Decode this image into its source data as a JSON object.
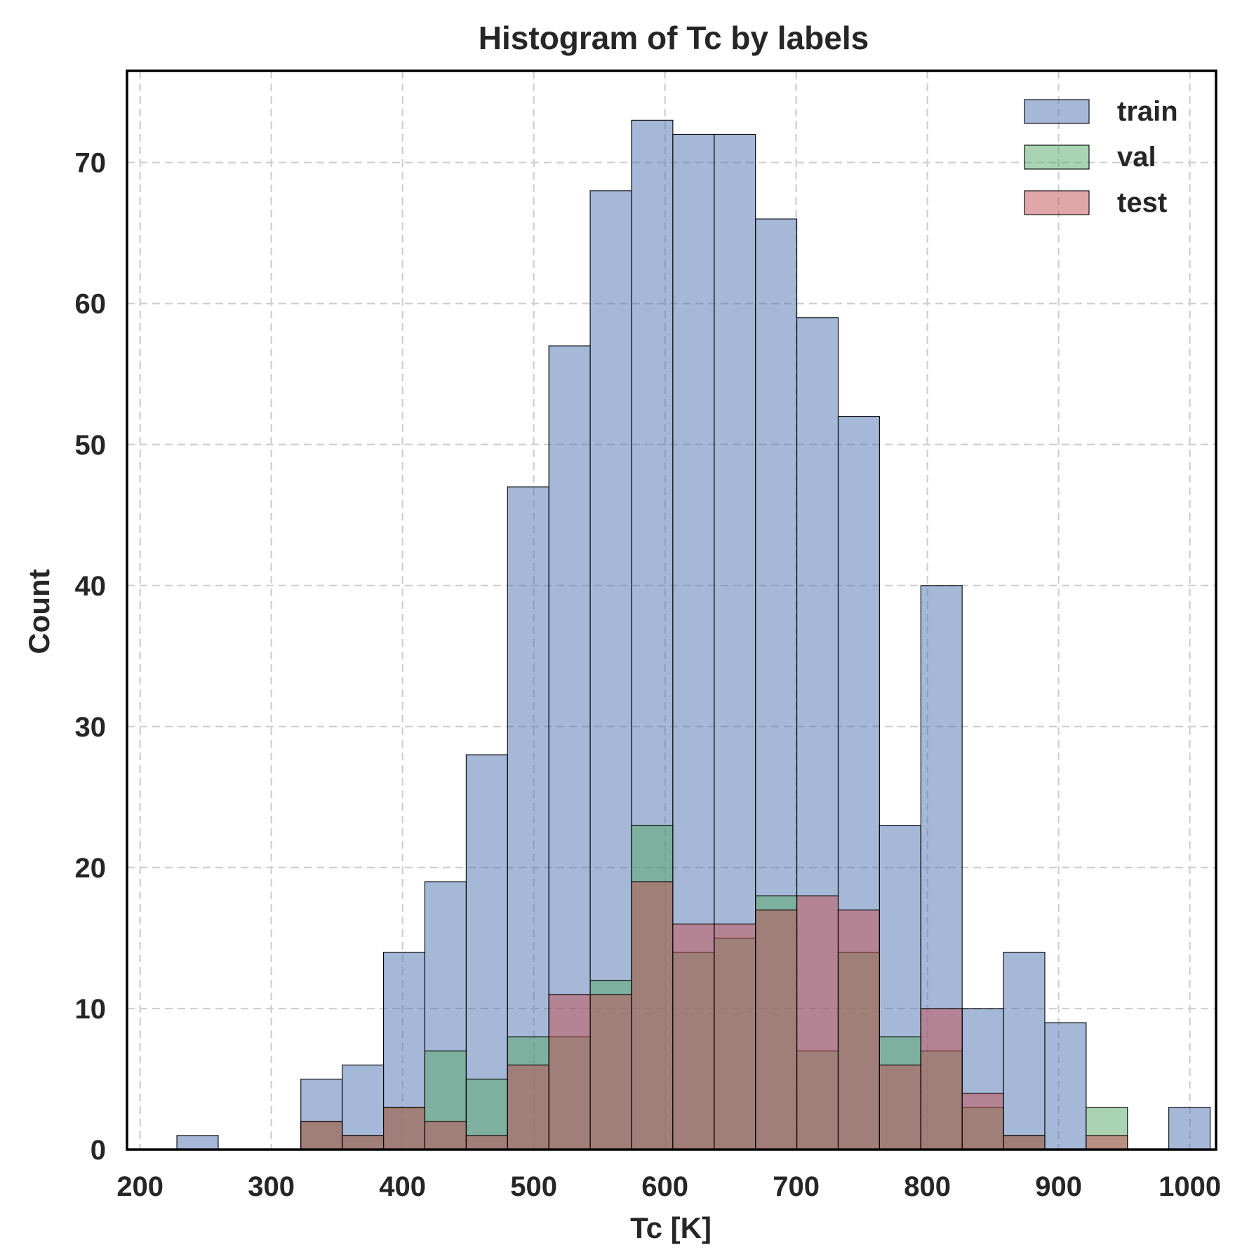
{
  "chart_data": {
    "type": "bar",
    "subtype": "overlapping-histogram",
    "title": "Histogram of Tc by labels",
    "xlabel": "Tc [K]",
    "ylabel": "Count",
    "xlim": [
      190,
      1020
    ],
    "ylim": [
      0,
      76.5
    ],
    "xticks": [
      200,
      300,
      400,
      500,
      600,
      700,
      800,
      900,
      1000
    ],
    "yticks": [
      0,
      10,
      20,
      30,
      40,
      50,
      60,
      70
    ],
    "grid": true,
    "legend_position": "top-right",
    "bin_start": 228,
    "bin_width": 31.5,
    "series": [
      {
        "name": "train",
        "color": "#4c72b0",
        "values": [
          1,
          0,
          0,
          5,
          6,
          14,
          19,
          28,
          47,
          57,
          68,
          73,
          72,
          72,
          66,
          59,
          52,
          23,
          40,
          10,
          14,
          9,
          0,
          0,
          3
        ]
      },
      {
        "name": "val",
        "color": "#55a868",
        "values": [
          0,
          0,
          0,
          2,
          1,
          3,
          7,
          5,
          8,
          8,
          12,
          23,
          14,
          15,
          18,
          7,
          14,
          8,
          7,
          3,
          1,
          0,
          3,
          0,
          0
        ]
      },
      {
        "name": "test",
        "color": "#c44e52",
        "values": [
          0,
          0,
          0,
          2,
          1,
          3,
          2,
          1,
          6,
          11,
          11,
          19,
          16,
          16,
          17,
          18,
          17,
          6,
          10,
          4,
          1,
          0,
          1,
          0,
          0
        ]
      }
    ]
  }
}
